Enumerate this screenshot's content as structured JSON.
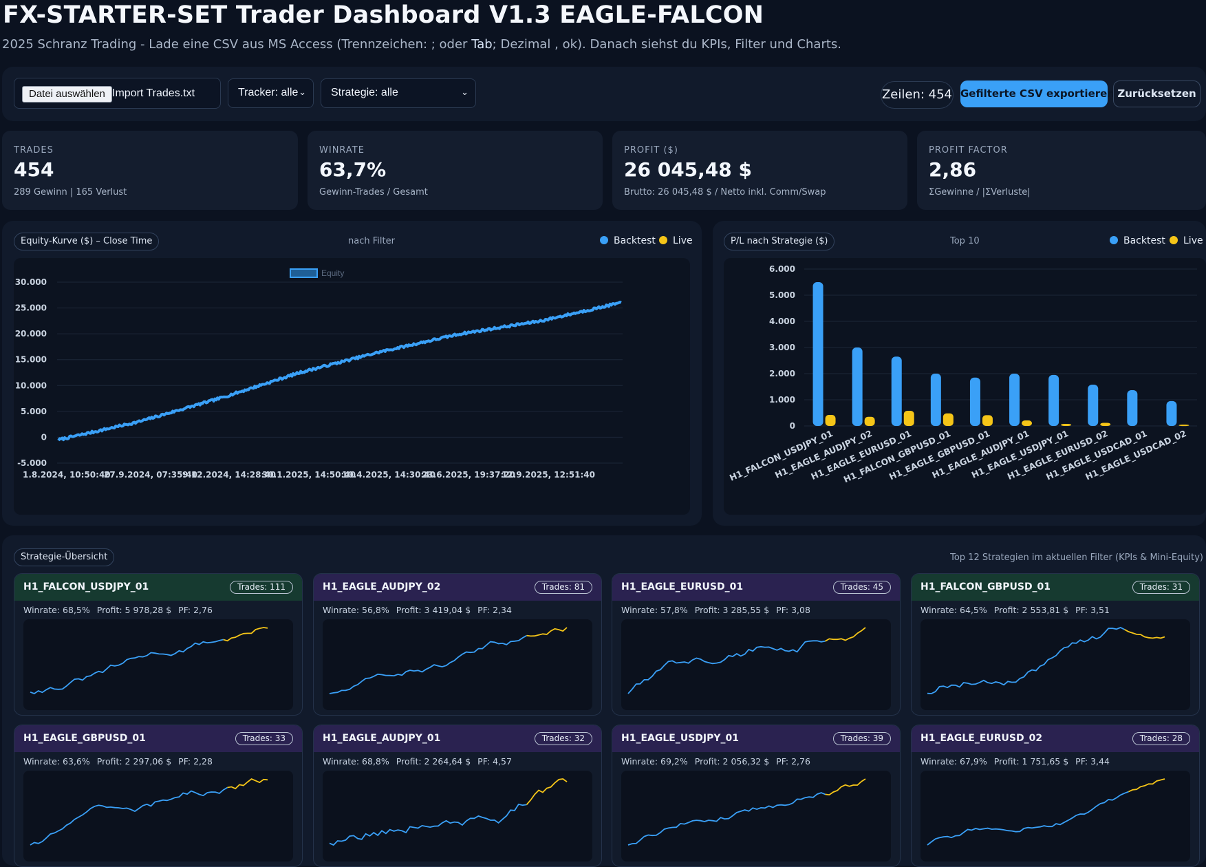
{
  "header": {
    "title": "FX-STARTER-SET Trader Dashboard V1.3 EAGLE-FALCON",
    "subtitle_a": "2025 Schranz Trading - Lade eine CSV aus MS Access (Trennzeichen: ; oder ",
    "subtitle_tab": "Tab",
    "subtitle_b": "; Dezimal , ok). Danach siehst du KPIs, Filter und Charts."
  },
  "toolbar": {
    "file_button": "Datei auswählen",
    "file_name": "Import Trades.txt",
    "tracker_select": "Tracker: alle",
    "strategy_select": "Strategie: alle",
    "row_count": "Zeilen: 454",
    "export_button": "Gefilterte CSV exportieren",
    "reset_button": "Zurücksetzen"
  },
  "kpis": [
    {
      "label": "TRADES",
      "value": "454",
      "sub": "289 Gewinn | 165 Verlust"
    },
    {
      "label": "WINRATE",
      "value": "63,7%",
      "sub": "Gewinn-Trades / Gesamt"
    },
    {
      "label": "PROFIT ($)",
      "value": "26 045,48 $",
      "sub": "Brutto: 26 045,48 $ / Netto inkl. Comm/Swap"
    },
    {
      "label": "PROFIT FACTOR",
      "value": "2,86",
      "sub": "ΣGewinne / |ΣVerluste|"
    }
  ],
  "colors": {
    "backtest": "#3aa0f7",
    "live": "#f5c518"
  },
  "equity_panel": {
    "chip": "Equity-Kurve ($) – Close Time",
    "center": "nach Filter",
    "legend_backtest": "Backtest",
    "legend_live": "Live",
    "series_label": "Equity"
  },
  "strategy_panel": {
    "chip": "P/L nach Strategie ($)",
    "center": "Top 10",
    "legend_backtest": "Backtest",
    "legend_live": "Live"
  },
  "overview": {
    "chip": "Strategie-Übersicht",
    "note": "Top 12 Strategien im aktuellen Filter (KPIs & Mini-Equity)",
    "cards": [
      {
        "name": "H1_FALCON_USDJPY_01",
        "trades": "Trades: 111",
        "winrate": "Winrate: 68,5%",
        "profit": "Profit: 5 978,28 $",
        "pf": "PF: 2,76",
        "tint": "#163a30"
      },
      {
        "name": "H1_EAGLE_AUDJPY_02",
        "trades": "Trades: 81",
        "winrate": "Winrate: 56,8%",
        "profit": "Profit: 3 419,04 $",
        "pf": "PF: 2,34",
        "tint": "#2a2250"
      },
      {
        "name": "H1_EAGLE_EURUSD_01",
        "trades": "Trades: 45",
        "winrate": "Winrate: 57,8%",
        "profit": "Profit: 3 285,55 $",
        "pf": "PF: 3,08",
        "tint": "#2a2250"
      },
      {
        "name": "H1_FALCON_GBPUSD_01",
        "trades": "Trades: 31",
        "winrate": "Winrate: 64,5%",
        "profit": "Profit: 2 553,81 $",
        "pf": "PF: 3,51",
        "tint": "#163a30"
      },
      {
        "name": "H1_EAGLE_GBPUSD_01",
        "trades": "Trades: 33",
        "winrate": "Winrate: 63,6%",
        "profit": "Profit: 2 297,06 $",
        "pf": "PF: 2,28",
        "tint": "#2a2250"
      },
      {
        "name": "H1_EAGLE_AUDJPY_01",
        "trades": "Trades: 32",
        "winrate": "Winrate: 68,8%",
        "profit": "Profit: 2 264,64 $",
        "pf": "PF: 4,57",
        "tint": "#2a2250"
      },
      {
        "name": "H1_EAGLE_USDJPY_01",
        "trades": "Trades: 39",
        "winrate": "Winrate: 69,2%",
        "profit": "Profit: 2 056,32 $",
        "pf": "PF: 2,76",
        "tint": "#2a2250"
      },
      {
        "name": "H1_EAGLE_EURUSD_02",
        "trades": "Trades: 28",
        "winrate": "Winrate: 67,9%",
        "profit": "Profit: 1 751,65 $",
        "pf": "PF: 3,44",
        "tint": "#2a2250"
      }
    ]
  },
  "chart_data": [
    {
      "type": "line",
      "title": "",
      "series": [
        {
          "name": "Equity",
          "x": [
            "1.8.2024",
            "27.9.2024",
            "9.12.2024",
            "30.1.2025",
            "10.4.2025",
            "23.6.2025",
            "12.9.2025",
            "30.10.2025"
          ],
          "values": [
            -500,
            3000,
            7500,
            12500,
            16500,
            20000,
            22500,
            26045
          ]
        }
      ],
      "x_tick_labels": [
        "1.8.2024, 10:50:40",
        "27.9.2024, 07:35:40",
        "9.12.2024, 14:28:40",
        "30.1.2025, 14:50:40",
        "10.4.2025, 14:30:40",
        "23.6.2025, 19:37:20",
        "12.9.2025, 12:51:40"
      ],
      "y_tick_labels": [
        "30.000",
        "25.000",
        "20.000",
        "15.000",
        "10.000",
        "5.000",
        "0",
        "-5.000"
      ],
      "ylim": [
        -5000,
        30000
      ],
      "grid": true
    },
    {
      "type": "bar",
      "title": "",
      "categories": [
        "H1_FALCON_USDJPY_01",
        "H1_EAGLE_AUDJPY_02",
        "H1_EAGLE_EURUSD_01",
        "H1_FALCON_GBPUSD_01",
        "H1_EAGLE_GBPUSD_01",
        "H1_EAGLE_AUDJPY_01",
        "H1_EAGLE_USDJPY_01",
        "H1_EAGLE_EURUSD_02",
        "H1_EAGLE_USDCAD_01",
        "H1_EAGLE_USDCAD_02"
      ],
      "series": [
        {
          "name": "Backtest",
          "values": [
            5500,
            3000,
            2650,
            2000,
            1850,
            2000,
            1950,
            1580,
            1370,
            950
          ]
        },
        {
          "name": "Live",
          "values": [
            420,
            350,
            580,
            480,
            410,
            210,
            80,
            120,
            0,
            50
          ]
        }
      ],
      "y_tick_labels": [
        "6.000",
        "5.000",
        "4.000",
        "3.000",
        "2.000",
        "1.000",
        "0"
      ],
      "ylim": [
        0,
        6000
      ],
      "grid": true
    }
  ]
}
